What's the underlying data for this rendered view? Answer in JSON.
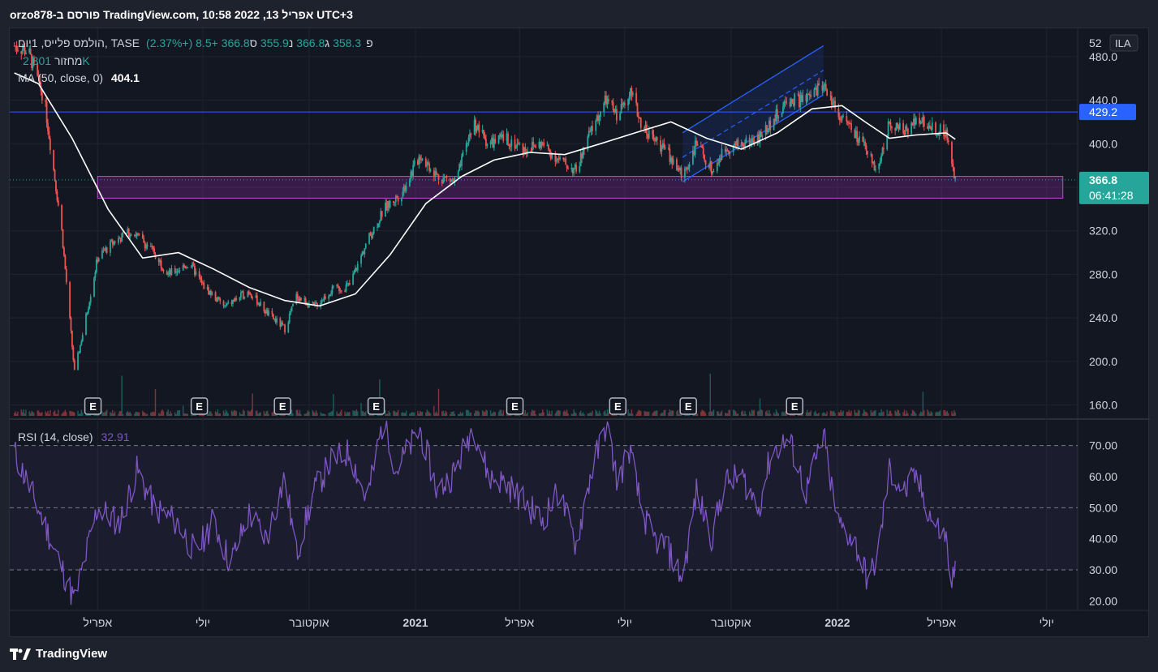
{
  "header": {
    "published": "orzo878-פורסם ב TradingView.com, 10:58 2022 ,13 אפריל UTC+3"
  },
  "legend": {
    "symbol": "הולמס פלייס, 1יום, TASE",
    "open_label": "פ",
    "open": "358.3",
    "high_label": "ג",
    "high": "366.8",
    "low_label": "נ",
    "low": "355.9",
    "close_label": "ס",
    "close": "366.8",
    "change": "+8.5 (+2.37%)",
    "volume_label": "מחזור",
    "volume": "2.301K",
    "ma_label": "MA (50, close, 0)",
    "ma_value": "404.1",
    "rsi_label": "RSI (14, close)",
    "rsi_value": "32.91"
  },
  "price_axis": {
    "currency": "ILA",
    "level_label": "429.2",
    "last_price": "366.8",
    "countdown": "06:41:28"
  },
  "footer": {
    "brand": "TradingView"
  },
  "colors": {
    "up": "#26a69a",
    "down": "#ef5350",
    "ma": "#ffffff",
    "rsi": "#7e57c2",
    "level": "#2962ff",
    "zone": "#9c27b0",
    "channel": "#2962ff"
  },
  "chart_data": [
    {
      "type": "candlestick",
      "title": "הולמס פלייס, 1יום, TASE",
      "ylim": [
        150,
        500
      ],
      "y_ticks": [
        160.0,
        200.0,
        240.0,
        280.0,
        320.0,
        360.0,
        400.0,
        440.0,
        480.0
      ],
      "y_tick_labels": [
        "160.0",
        "200.0",
        "240.0",
        "280.0",
        "320.0",
        "400.0",
        "440.0",
        "480.0"
      ],
      "x_labels": [
        "אפריל",
        "יולי",
        "אוקטובר",
        "2021",
        "אפריל",
        "יולי",
        "אוקטובר",
        "2022",
        "אפריל",
        "יולי"
      ],
      "price_path": [
        [
          "2020-01-20",
          490
        ],
        [
          "2020-02-01",
          485
        ],
        [
          "2020-02-15",
          440
        ],
        [
          "2020-03-01",
          320
        ],
        [
          "2020-03-12",
          190
        ],
        [
          "2020-03-20",
          230
        ],
        [
          "2020-04-01",
          295
        ],
        [
          "2020-04-15",
          310
        ],
        [
          "2020-05-01",
          320
        ],
        [
          "2020-05-20",
          300
        ],
        [
          "2020-06-01",
          280
        ],
        [
          "2020-06-20",
          290
        ],
        [
          "2020-07-01",
          270
        ],
        [
          "2020-07-20",
          250
        ],
        [
          "2020-08-10",
          265
        ],
        [
          "2020-08-25",
          245
        ],
        [
          "2020-09-10",
          230
        ],
        [
          "2020-09-20",
          260
        ],
        [
          "2020-10-05",
          250
        ],
        [
          "2020-10-20",
          265
        ],
        [
          "2020-11-05",
          270
        ],
        [
          "2020-11-20",
          310
        ],
        [
          "2020-12-05",
          340
        ],
        [
          "2020-12-20",
          355
        ],
        [
          "2021-01-05",
          390
        ],
        [
          "2021-01-20",
          370
        ],
        [
          "2021-02-05",
          365
        ],
        [
          "2021-02-20",
          420
        ],
        [
          "2021-03-05",
          400
        ],
        [
          "2021-03-20",
          405
        ],
        [
          "2021-04-05",
          395
        ],
        [
          "2021-04-20",
          400
        ],
        [
          "2021-05-05",
          385
        ],
        [
          "2021-05-20",
          375
        ],
        [
          "2021-06-01",
          410
        ],
        [
          "2021-06-15",
          440
        ],
        [
          "2021-06-25",
          425
        ],
        [
          "2021-07-05",
          450
        ],
        [
          "2021-07-15",
          420
        ],
        [
          "2021-07-25",
          405
        ],
        [
          "2021-08-05",
          395
        ],
        [
          "2021-08-20",
          370
        ],
        [
          "2021-09-01",
          400
        ],
        [
          "2021-09-15",
          375
        ],
        [
          "2021-09-25",
          395
        ],
        [
          "2021-10-10",
          400
        ],
        [
          "2021-10-25",
          405
        ],
        [
          "2021-11-05",
          420
        ],
        [
          "2021-11-20",
          440
        ],
        [
          "2021-12-05",
          440
        ],
        [
          "2021-12-20",
          455
        ],
        [
          "2022-01-01",
          430
        ],
        [
          "2022-01-15",
          410
        ],
        [
          "2022-01-28",
          390
        ],
        [
          "2022-02-05",
          375
        ],
        [
          "2022-02-15",
          420
        ],
        [
          "2022-02-28",
          410
        ],
        [
          "2022-03-10",
          425
        ],
        [
          "2022-03-25",
          415
        ],
        [
          "2022-04-05",
          410
        ],
        [
          "2022-04-10",
          380
        ],
        [
          "2022-04-13",
          367
        ]
      ],
      "ma_path": [
        [
          "2020-01-20",
          465
        ],
        [
          "2020-02-10",
          455
        ],
        [
          "2020-03-10",
          405
        ],
        [
          "2020-04-10",
          340
        ],
        [
          "2020-05-10",
          295
        ],
        [
          "2020-06-10",
          300
        ],
        [
          "2020-07-10",
          285
        ],
        [
          "2020-08-10",
          268
        ],
        [
          "2020-09-10",
          256
        ],
        [
          "2020-10-10",
          251
        ],
        [
          "2020-11-10",
          262
        ],
        [
          "2020-12-10",
          298
        ],
        [
          "2021-01-10",
          345
        ],
        [
          "2021-02-10",
          370
        ],
        [
          "2021-03-10",
          385
        ],
        [
          "2021-04-10",
          392
        ],
        [
          "2021-05-10",
          390
        ],
        [
          "2021-06-10",
          400
        ],
        [
          "2021-07-10",
          410
        ],
        [
          "2021-08-10",
          420
        ],
        [
          "2021-09-10",
          405
        ],
        [
          "2021-10-10",
          395
        ],
        [
          "2021-11-10",
          410
        ],
        [
          "2021-12-10",
          432
        ],
        [
          "2022-01-05",
          435
        ],
        [
          "2022-01-25",
          420
        ],
        [
          "2022-02-15",
          405
        ],
        [
          "2022-03-10",
          408
        ],
        [
          "2022-04-05",
          410
        ],
        [
          "2022-04-13",
          404.1
        ]
      ],
      "horizontal_level": 429.2,
      "zone": {
        "from": "2020-04-01",
        "to": "2022-07-15",
        "low": 350,
        "high": 370
      },
      "channel": {
        "start": "2021-08-20",
        "end": "2021-12-20",
        "lower_start": 365,
        "upper_start": 410,
        "lower_end": 445,
        "upper_end": 490
      },
      "earnings_markers": [
        "2020-03-28",
        "2020-06-28",
        "2020-09-08",
        "2020-11-28",
        "2021-03-28",
        "2021-06-25",
        "2021-08-25",
        "2021-11-25"
      ],
      "last_price": 366.8
    },
    {
      "type": "line",
      "title": "RSI (14, close)",
      "ylim": [
        18,
        78
      ],
      "y_ticks": [
        20.0,
        30.0,
        40.0,
        50.0,
        60.0,
        70.0
      ],
      "y_tick_labels": [
        "20.00",
        "30.00",
        "40.00",
        "50.00",
        "60.00",
        "70.00"
      ],
      "bands": [
        30,
        50,
        70
      ],
      "values": [
        [
          "2020-01-20",
          68
        ],
        [
          "2020-02-15",
          45
        ],
        [
          "2020-03-12",
          20
        ],
        [
          "2020-04-01",
          50
        ],
        [
          "2020-04-20",
          45
        ],
        [
          "2020-05-05",
          62
        ],
        [
          "2020-05-20",
          50
        ],
        [
          "2020-06-10",
          45
        ],
        [
          "2020-06-25",
          35
        ],
        [
          "2020-07-10",
          46
        ],
        [
          "2020-07-25",
          32
        ],
        [
          "2020-08-10",
          48
        ],
        [
          "2020-08-25",
          40
        ],
        [
          "2020-09-10",
          60
        ],
        [
          "2020-09-20",
          35
        ],
        [
          "2020-10-05",
          55
        ],
        [
          "2020-10-20",
          65
        ],
        [
          "2020-11-05",
          68
        ],
        [
          "2020-11-20",
          52
        ],
        [
          "2020-12-05",
          80
        ],
        [
          "2020-12-15",
          62
        ],
        [
          "2021-01-05",
          75
        ],
        [
          "2021-01-20",
          55
        ],
        [
          "2021-02-05",
          62
        ],
        [
          "2021-02-20",
          77
        ],
        [
          "2021-03-05",
          60
        ],
        [
          "2021-03-20",
          58
        ],
        [
          "2021-04-05",
          52
        ],
        [
          "2021-04-20",
          46
        ],
        [
          "2021-05-05",
          55
        ],
        [
          "2021-05-20",
          38
        ],
        [
          "2021-06-01",
          60
        ],
        [
          "2021-06-15",
          77
        ],
        [
          "2021-06-25",
          58
        ],
        [
          "2021-07-05",
          69
        ],
        [
          "2021-07-15",
          50
        ],
        [
          "2021-07-25",
          40
        ],
        [
          "2021-08-05",
          38
        ],
        [
          "2021-08-20",
          27
        ],
        [
          "2021-09-01",
          55
        ],
        [
          "2021-09-15",
          40
        ],
        [
          "2021-09-25",
          58
        ],
        [
          "2021-10-10",
          60
        ],
        [
          "2021-10-25",
          50
        ],
        [
          "2021-11-05",
          68
        ],
        [
          "2021-11-20",
          72
        ],
        [
          "2021-12-05",
          55
        ],
        [
          "2021-12-20",
          73
        ],
        [
          "2022-01-01",
          45
        ],
        [
          "2022-01-15",
          40
        ],
        [
          "2022-01-28",
          26
        ],
        [
          "2022-02-05",
          35
        ],
        [
          "2022-02-15",
          62
        ],
        [
          "2022-02-28",
          55
        ],
        [
          "2022-03-10",
          60
        ],
        [
          "2022-03-25",
          45
        ],
        [
          "2022-04-05",
          40
        ],
        [
          "2022-04-10",
          25
        ],
        [
          "2022-04-13",
          32.91
        ]
      ],
      "last_value": 32.91
    }
  ]
}
